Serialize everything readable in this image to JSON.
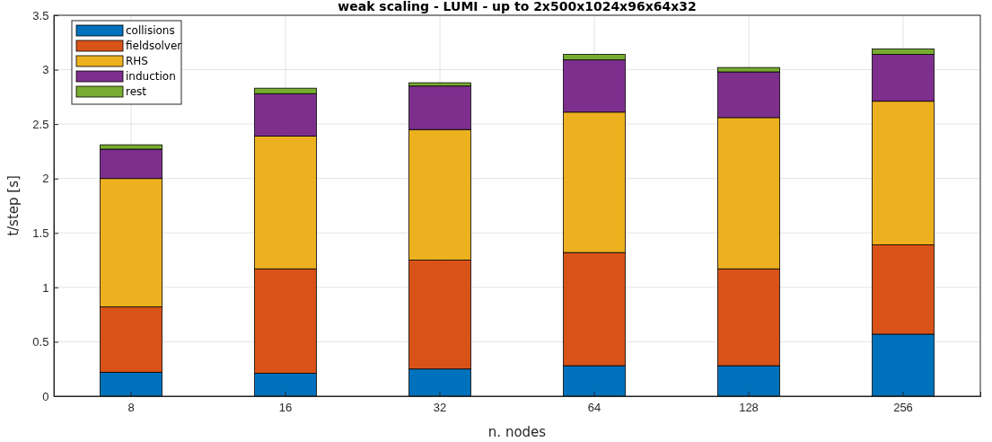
{
  "chart_data": {
    "type": "bar",
    "title": "weak scaling - LUMI - up to 2x500x1024x96x64x32",
    "xlabel": "n. nodes",
    "ylabel": "t/step [s]",
    "categories": [
      "8",
      "16",
      "32",
      "64",
      "128",
      "256"
    ],
    "stacked": true,
    "series": [
      {
        "name": "collisions",
        "color": "#0072bd",
        "values": [
          0.22,
          0.21,
          0.25,
          0.28,
          0.28,
          0.57
        ]
      },
      {
        "name": "fieldsolver",
        "color": "#d95319",
        "values": [
          0.6,
          0.96,
          1.0,
          1.04,
          0.89,
          0.82
        ]
      },
      {
        "name": "RHS",
        "color": "#edb120",
        "values": [
          1.18,
          1.22,
          1.2,
          1.29,
          1.39,
          1.32
        ]
      },
      {
        "name": "induction",
        "color": "#7e2f8e",
        "values": [
          0.27,
          0.39,
          0.4,
          0.48,
          0.42,
          0.43
        ]
      },
      {
        "name": "rest",
        "color": "#77ac30",
        "values": [
          0.04,
          0.05,
          0.03,
          0.05,
          0.04,
          0.05
        ]
      }
    ],
    "ylim": [
      0,
      3.5
    ],
    "yticks": [
      0,
      0.5,
      1,
      1.5,
      2,
      2.5,
      3,
      3.5
    ],
    "grid": true,
    "legend": "top left"
  }
}
